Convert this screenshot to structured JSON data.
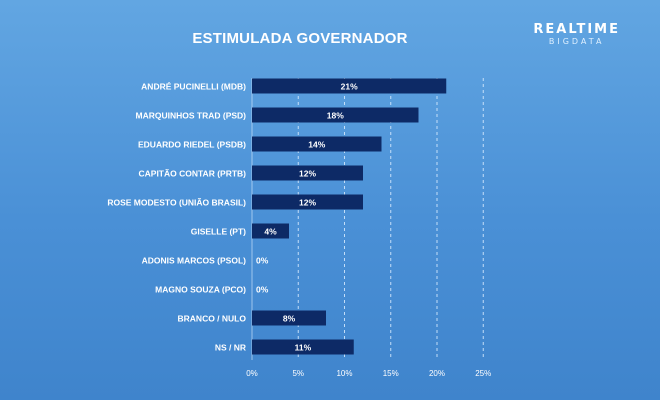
{
  "header": {
    "title": "ESTIMULADA GOVERNADOR",
    "brand_line1": "REALTIME",
    "brand_line2": "BIGDATA"
  },
  "colors": {
    "bar": "#0d2a66",
    "bar_text": "#ffffff",
    "label_text": "#ffffff",
    "grid": "#d9ecff"
  },
  "chart_data": {
    "type": "bar",
    "orientation": "horizontal",
    "title": "ESTIMULADA GOVERNADOR",
    "categories": [
      "ANDRÉ PUCINELLI (MDB)",
      "MARQUINHOS TRAD (PSD)",
      "EDUARDO RIEDEL (PSDB)",
      "CAPITÃO CONTAR (PRTB)",
      "ROSE MODESTO (UNIÃO BRASIL)",
      "GISELLE (PT)",
      "ADONIS MARCOS (PSOL)",
      "MAGNO SOUZA (PCO)",
      "BRANCO / NULO",
      "NS / NR"
    ],
    "values": [
      21,
      18,
      14,
      12,
      12,
      4,
      0,
      0,
      8,
      11
    ],
    "value_labels": [
      "21%",
      "18%",
      "14%",
      "12%",
      "12%",
      "4%",
      "0%",
      "0%",
      "8%",
      "11%"
    ],
    "x_ticks": [
      0,
      5,
      10,
      15,
      20,
      25
    ],
    "x_tick_labels": [
      "0%",
      "5%",
      "10%",
      "15%",
      "20%",
      "25%"
    ],
    "xlim": [
      0,
      25
    ],
    "grid": true
  }
}
